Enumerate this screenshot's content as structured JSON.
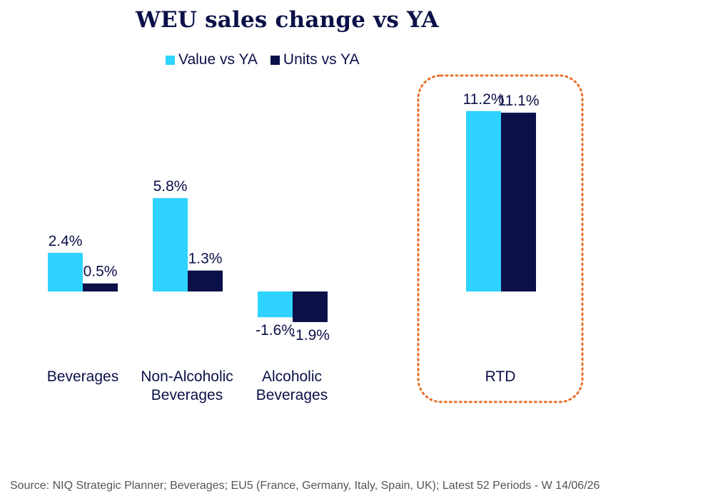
{
  "chart_data": {
    "type": "bar",
    "title": "WEU sales change vs YA",
    "categories": [
      [
        "Beverages"
      ],
      [
        "Non-Alcoholic",
        "Beverages"
      ],
      [
        "Alcoholic",
        "Beverages"
      ],
      [
        "RTD"
      ]
    ],
    "series": [
      {
        "name": "Value vs YA",
        "color": "#2ed3ff",
        "values": [
          2.4,
          5.8,
          -1.6,
          11.2
        ],
        "labels": [
          "2.4%",
          "5.8%",
          "-1.6%",
          "11.2%"
        ]
      },
      {
        "name": "Units vs YA",
        "color": "#0b1048",
        "values": [
          0.5,
          1.3,
          -1.9,
          11.1
        ],
        "labels": [
          "0.5%",
          "1.3%",
          "-1.9%",
          "11.1%"
        ]
      }
    ],
    "ylabel": "",
    "xlabel": "",
    "ylim": [
      -1.9,
      11.2
    ],
    "grid": false,
    "legend": "top",
    "highlight": {
      "category": "RTD",
      "style": "dotted-rounded-box",
      "color": "#e8702a"
    }
  },
  "source": "Source: NIQ Strategic Planner; Beverages; EU5 (France, Germany, Italy, Spain, UK); Latest 52 Periods - W 14/06/26"
}
